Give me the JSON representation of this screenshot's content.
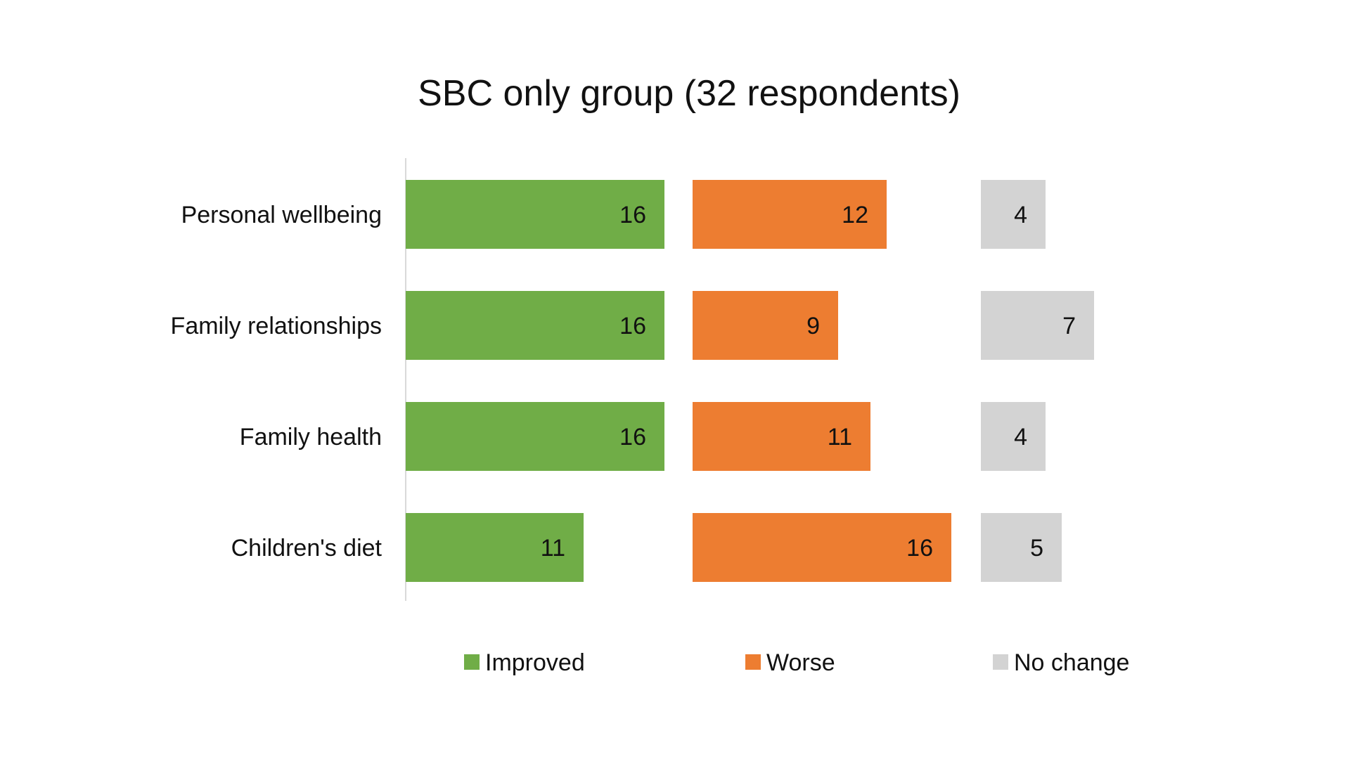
{
  "chart_data": {
    "type": "bar",
    "orientation": "horizontal",
    "layout": "panels-by-series",
    "title": "SBC only group (32 respondents)",
    "xlabel": "",
    "ylabel": "",
    "categories": [
      "Personal wellbeing",
      "Family relationships",
      "Family health",
      "Children's diet"
    ],
    "series": [
      {
        "name": "Improved",
        "color": "#70AD47",
        "values": [
          16,
          16,
          16,
          11
        ]
      },
      {
        "name": "Worse",
        "color": "#ED7D31",
        "values": [
          12,
          9,
          11,
          16
        ]
      },
      {
        "name": "No change",
        "color": "#D3D3D3",
        "values": [
          4,
          7,
          4,
          5
        ]
      }
    ],
    "data_labels": true,
    "grid": false,
    "legend": "bottom"
  }
}
